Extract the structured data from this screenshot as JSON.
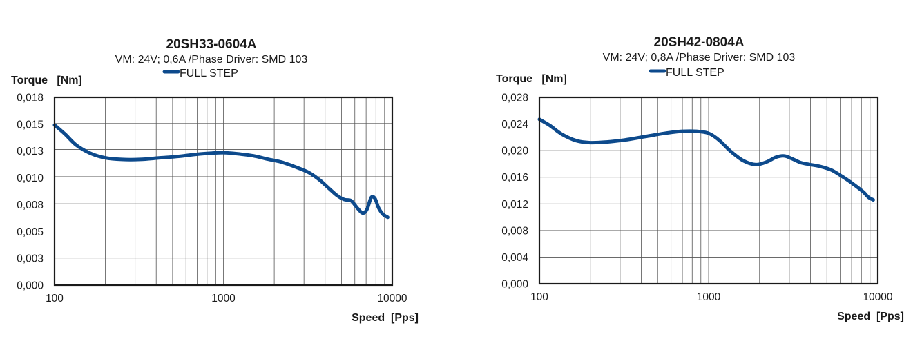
{
  "colors": {
    "series": "#0d4a8c"
  },
  "chart_data": [
    {
      "type": "line",
      "title": "20SH33-0604A",
      "subtitle": "VM: 24V;  0,6A /Phase Driver: SMD 103",
      "ylabel": "Torque   [Nm]",
      "xlabel": "Speed  [Pps]",
      "x_scale": "log",
      "xlim": [
        100,
        10000
      ],
      "ylim": [
        0,
        0.018
      ],
      "x_ticks": [
        "100",
        "1000",
        "10000"
      ],
      "x_tick_values": [
        100,
        1000,
        10000
      ],
      "y_ticks": [
        "0,018",
        "0,015",
        "0,013",
        "0,010",
        "0,008",
        "0,005",
        "0,003",
        "0,000"
      ],
      "y_tick_values": [
        0.018,
        0.0155,
        0.013,
        0.0104,
        0.0078,
        0.0052,
        0.0026,
        0
      ],
      "grid": true,
      "legend_placement": "top-center",
      "series": [
        {
          "name": "FULL STEP",
          "x": [
            100,
            115,
            135,
            165,
            200,
            250,
            320,
            420,
            550,
            700,
            850,
            1000,
            1200,
            1500,
            1800,
            2200,
            2700,
            3200,
            3700,
            4200,
            4700,
            5200,
            5700,
            6200,
            6700,
            7100,
            7500,
            7900,
            8300,
            8800,
            9400
          ],
          "y": [
            0.01535,
            0.0145,
            0.0134,
            0.0126,
            0.0122,
            0.01205,
            0.01205,
            0.0122,
            0.01235,
            0.01255,
            0.01265,
            0.0127,
            0.0126,
            0.0124,
            0.0121,
            0.0118,
            0.0113,
            0.0108,
            0.0101,
            0.0093,
            0.0086,
            0.0082,
            0.0081,
            0.0074,
            0.0069,
            0.0073,
            0.0084,
            0.0083,
            0.0074,
            0.0068,
            0.0065
          ]
        }
      ]
    },
    {
      "type": "line",
      "title": "20SH42-0804A",
      "subtitle": "VM: 24V;  0,8A /Phase Driver: SMD 103",
      "ylabel": "Torque   [Nm]",
      "xlabel": "Speed  [Pps]",
      "x_scale": "log",
      "xlim": [
        100,
        10000
      ],
      "ylim": [
        0,
        0.028
      ],
      "x_ticks": [
        "100",
        "1000",
        "10000"
      ],
      "x_tick_values": [
        100,
        1000,
        10000
      ],
      "y_ticks": [
        "0,028",
        "0,024",
        "0,020",
        "0,016",
        "0,012",
        "0,008",
        "0,004",
        "0,000"
      ],
      "y_tick_values": [
        0.028,
        0.024,
        0.02,
        0.016,
        0.012,
        0.008,
        0.004,
        0
      ],
      "grid": true,
      "legend_placement": "top-center",
      "series": [
        {
          "name": "FULL STEP",
          "x": [
            100,
            115,
            135,
            165,
            200,
            250,
            320,
            420,
            550,
            700,
            850,
            1000,
            1150,
            1350,
            1600,
            1900,
            2200,
            2500,
            2800,
            3100,
            3500,
            4000,
            4600,
            5300,
            6000,
            6700,
            7400,
            8200,
            8800,
            9400
          ],
          "y": [
            0.0247,
            0.0238,
            0.0225,
            0.0215,
            0.0212,
            0.0213,
            0.0216,
            0.0221,
            0.0226,
            0.0229,
            0.0229,
            0.0226,
            0.0216,
            0.0199,
            0.0185,
            0.0179,
            0.0183,
            0.019,
            0.0192,
            0.0188,
            0.0182,
            0.0179,
            0.0176,
            0.0171,
            0.0163,
            0.0155,
            0.0147,
            0.0138,
            0.013,
            0.0126
          ]
        }
      ]
    }
  ]
}
